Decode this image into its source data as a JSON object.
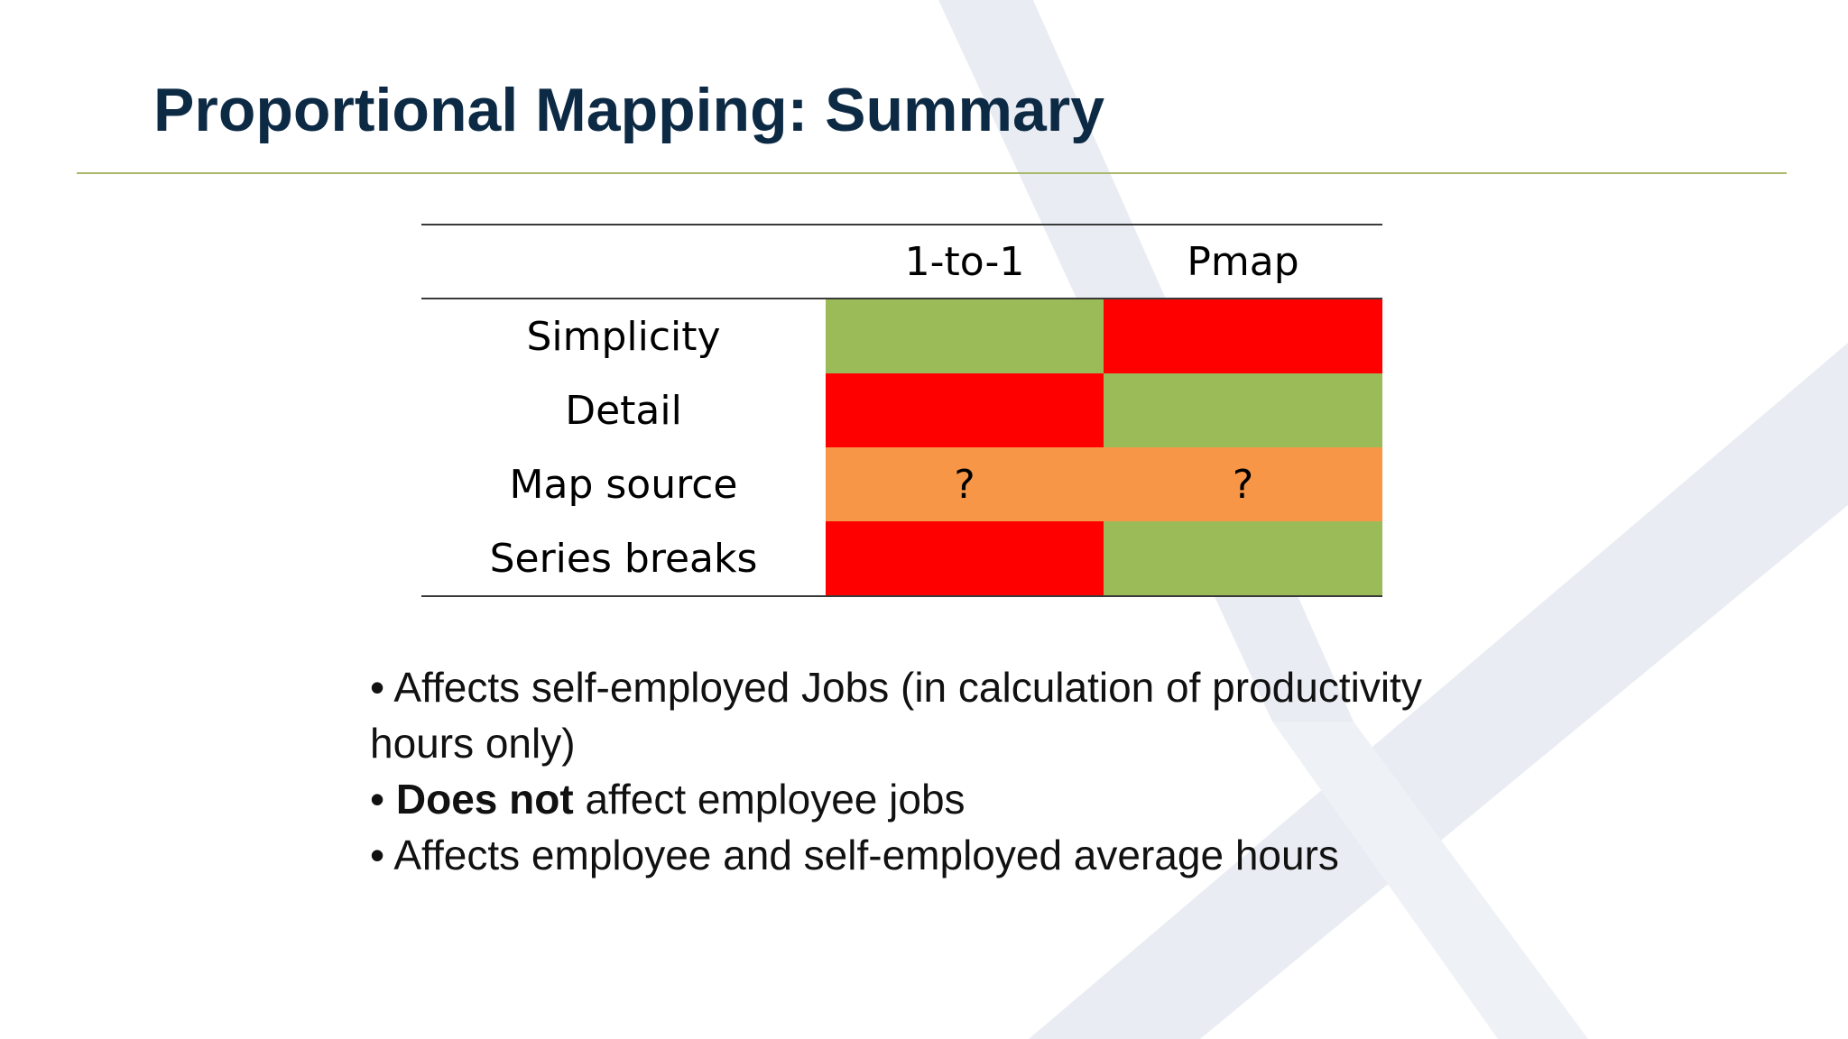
{
  "title": "Proportional Mapping: Summary",
  "colors": {
    "title": "#0d2a45",
    "rule": "#a9b86a",
    "good": "#9bbb59",
    "bad": "#ff0000",
    "uncertain": "#f79646",
    "watermark": "#e9edf3"
  },
  "table": {
    "headers": [
      "",
      "1-to-1",
      "Pmap"
    ],
    "rows": [
      {
        "label": "Simplicity",
        "cells": [
          {
            "text": "",
            "status": "good"
          },
          {
            "text": "",
            "status": "bad"
          }
        ]
      },
      {
        "label": "Detail",
        "cells": [
          {
            "text": "",
            "status": "bad"
          },
          {
            "text": "",
            "status": "good"
          }
        ]
      },
      {
        "label": "Map source",
        "cells": [
          {
            "text": "?",
            "status": "uncertain"
          },
          {
            "text": "?",
            "status": "uncertain"
          }
        ]
      },
      {
        "label": "Series breaks",
        "cells": [
          {
            "text": "",
            "status": "bad"
          },
          {
            "text": "",
            "status": "good"
          }
        ]
      }
    ]
  },
  "bullets": [
    {
      "bold": "",
      "text": "Affects self-employed Jobs (in calculation of productivity hours only)"
    },
    {
      "bold": "Does not",
      "text": " affect employee jobs"
    },
    {
      "bold": "",
      "text": "Affects employee and self-employed average hours"
    }
  ],
  "bullet_char": "•"
}
